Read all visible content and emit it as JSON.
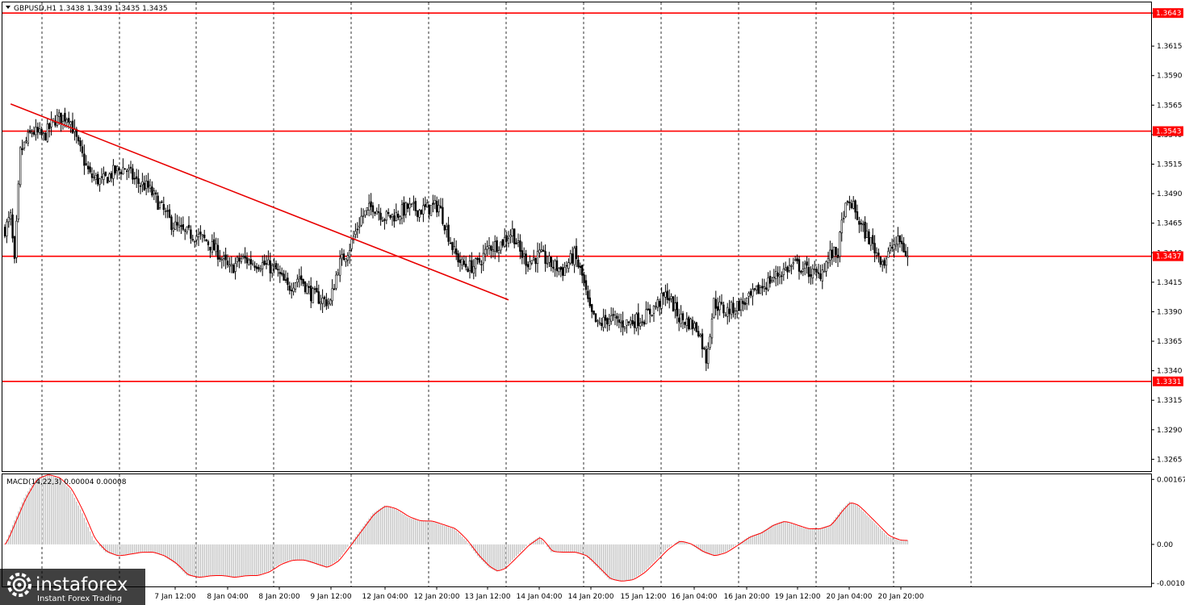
{
  "chart_data": [
    {
      "type": "candlestick",
      "symbol_header": "GBPUSD,H1  1.3438 1.3439 1.3435 1.3435",
      "ylim": [
        1.3255,
        1.3652
      ],
      "y_ticks": [
        "1.3643",
        "1.3615",
        "1.3590",
        "1.3565",
        "1.3540",
        "1.3515",
        "1.3490",
        "1.3465",
        "1.3440",
        "1.3415",
        "1.3390",
        "1.3365",
        "1.3340",
        "1.3315",
        "1.3290",
        "1.3265"
      ],
      "y_tick_values": [
        1.3643,
        1.3615,
        1.359,
        1.3565,
        1.354,
        1.3515,
        1.349,
        1.3465,
        1.344,
        1.3415,
        1.339,
        1.3365,
        1.334,
        1.3315,
        1.329,
        1.3265
      ],
      "x_ticks": [
        "7 Jan 12:00",
        "8 Jan 04:00",
        "8 Jan 20:00",
        "9 Jan 12:00",
        "12 Jan 04:00",
        "12 Jan 20:00",
        "13 Jan 12:00",
        "14 Jan 04:00",
        "14 Jan 20:00",
        "15 Jan 12:00",
        "16 Jan 04:00",
        "16 Jan 20:00",
        "19 Jan 12:00",
        "20 Jan 04:00",
        "20 Jan 20:00"
      ],
      "levels": [
        {
          "label": "1.3643",
          "value": 1.3643
        },
        {
          "label": "1.3543",
          "value": 1.3543
        },
        {
          "label": "1.3437",
          "value": 1.3437
        },
        {
          "label": "1.3331",
          "value": 1.3331
        }
      ],
      "trendline": {
        "from": {
          "bar": 3,
          "price": 1.3566
        },
        "to": {
          "bar": 260,
          "price": 1.34
        }
      },
      "anchors": [
        [
          0,
          1.346
        ],
        [
          3,
          1.347
        ],
        [
          5,
          1.343
        ],
        [
          8,
          1.3525
        ],
        [
          14,
          1.3543
        ],
        [
          20,
          1.3538
        ],
        [
          26,
          1.3553
        ],
        [
          33,
          1.3556
        ],
        [
          38,
          1.353
        ],
        [
          44,
          1.3505
        ],
        [
          50,
          1.35
        ],
        [
          56,
          1.3508
        ],
        [
          62,
          1.3512
        ],
        [
          68,
          1.35
        ],
        [
          74,
          1.3495
        ],
        [
          80,
          1.348
        ],
        [
          86,
          1.3465
        ],
        [
          92,
          1.3457
        ],
        [
          98,
          1.3455
        ],
        [
          104,
          1.345
        ],
        [
          110,
          1.344
        ],
        [
          116,
          1.3425
        ],
        [
          122,
          1.3435
        ],
        [
          128,
          1.3432
        ],
        [
          134,
          1.343
        ],
        [
          140,
          1.3425
        ],
        [
          146,
          1.341
        ],
        [
          152,
          1.342
        ],
        [
          158,
          1.3405
        ],
        [
          164,
          1.34
        ],
        [
          168,
          1.3398
        ],
        [
          172,
          1.3428
        ],
        [
          178,
          1.3445
        ],
        [
          184,
          1.347
        ],
        [
          190,
          1.348
        ],
        [
          196,
          1.347
        ],
        [
          202,
          1.3472
        ],
        [
          208,
          1.3478
        ],
        [
          214,
          1.3476
        ],
        [
          220,
          1.3478
        ],
        [
          224,
          1.348
        ],
        [
          228,
          1.346
        ],
        [
          232,
          1.344
        ],
        [
          236,
          1.343
        ],
        [
          240,
          1.3428
        ],
        [
          244,
          1.343
        ],
        [
          250,
          1.3445
        ],
        [
          256,
          1.3448
        ],
        [
          262,
          1.3458
        ],
        [
          266,
          1.344
        ],
        [
          270,
          1.3432
        ],
        [
          276,
          1.3438
        ],
        [
          282,
          1.343
        ],
        [
          288,
          1.3425
        ],
        [
          294,
          1.3438
        ],
        [
          298,
          1.342
        ],
        [
          302,
          1.339
        ],
        [
          306,
          1.3378
        ],
        [
          312,
          1.3385
        ],
        [
          318,
          1.338
        ],
        [
          324,
          1.3382
        ],
        [
          330,
          1.3385
        ],
        [
          336,
          1.3395
        ],
        [
          342,
          1.3405
        ],
        [
          348,
          1.3385
        ],
        [
          354,
          1.338
        ],
        [
          358,
          1.3375
        ],
        [
          362,
          1.335
        ],
        [
          366,
          1.3398
        ],
        [
          372,
          1.339
        ],
        [
          378,
          1.3395
        ],
        [
          384,
          1.34
        ],
        [
          390,
          1.341
        ],
        [
          396,
          1.3418
        ],
        [
          402,
          1.3425
        ],
        [
          408,
          1.343
        ],
        [
          414,
          1.3425
        ],
        [
          420,
          1.342
        ],
        [
          426,
          1.3438
        ],
        [
          430,
          1.344
        ],
        [
          433,
          1.3475
        ],
        [
          437,
          1.3482
        ],
        [
          442,
          1.3462
        ],
        [
          446,
          1.3452
        ],
        [
          450,
          1.344
        ],
        [
          454,
          1.3432
        ],
        [
          458,
          1.3445
        ],
        [
          462,
          1.345
        ],
        [
          466,
          1.3436
        ]
      ]
    },
    {
      "type": "macd-histogram",
      "indicator_header": "MACD(14,22,3) 0.00004 0.00008",
      "ylim": [
        -0.00108,
        0.0018
      ],
      "y_ticks": [
        "0.00167",
        "0.00",
        "-0.0010"
      ],
      "y_tick_values": [
        0.00167,
        0.0,
        -0.001
      ],
      "anchors": [
        [
          0,
          0.0
        ],
        [
          4,
          0.0005
        ],
        [
          10,
          0.0012
        ],
        [
          16,
          0.0017
        ],
        [
          22,
          0.0018
        ],
        [
          28,
          0.0017
        ],
        [
          34,
          0.0014
        ],
        [
          40,
          0.0008
        ],
        [
          46,
          0.0001
        ],
        [
          52,
          -0.0002
        ],
        [
          58,
          -0.0003
        ],
        [
          64,
          -0.00025
        ],
        [
          70,
          -0.0002
        ],
        [
          76,
          -0.0002
        ],
        [
          82,
          -0.0003
        ],
        [
          88,
          -0.0005
        ],
        [
          94,
          -0.0008
        ],
        [
          100,
          -0.00085
        ],
        [
          106,
          -0.0008
        ],
        [
          112,
          -0.0008
        ],
        [
          118,
          -0.00085
        ],
        [
          124,
          -0.0008
        ],
        [
          130,
          -0.0008
        ],
        [
          136,
          -0.0007
        ],
        [
          142,
          -0.0005
        ],
        [
          148,
          -0.0004
        ],
        [
          154,
          -0.0004
        ],
        [
          160,
          -0.0005
        ],
        [
          166,
          -0.0006
        ],
        [
          172,
          -0.0004
        ],
        [
          178,
          0.0
        ],
        [
          184,
          0.0004
        ],
        [
          190,
          0.0008
        ],
        [
          196,
          0.001
        ],
        [
          202,
          0.0009
        ],
        [
          208,
          0.0007
        ],
        [
          214,
          0.0006
        ],
        [
          220,
          0.0006
        ],
        [
          226,
          0.0005
        ],
        [
          232,
          0.0004
        ],
        [
          238,
          0.0001
        ],
        [
          244,
          -0.0003
        ],
        [
          250,
          -0.0006
        ],
        [
          254,
          -0.0007
        ],
        [
          258,
          -0.0006
        ],
        [
          264,
          -0.0003
        ],
        [
          270,
          0.0
        ],
        [
          276,
          0.0002
        ],
        [
          282,
          -0.0002
        ],
        [
          288,
          -0.0002
        ],
        [
          294,
          -0.0002
        ],
        [
          300,
          -0.0003
        ],
        [
          306,
          -0.0006
        ],
        [
          312,
          -0.0009
        ],
        [
          318,
          -0.00095
        ],
        [
          324,
          -0.0009
        ],
        [
          330,
          -0.0007
        ],
        [
          336,
          -0.0004
        ],
        [
          342,
          -0.0001
        ],
        [
          348,
          0.0001
        ],
        [
          354,
          0.0
        ],
        [
          360,
          -0.0002
        ],
        [
          366,
          -0.0003
        ],
        [
          372,
          -0.0002
        ],
        [
          378,
          0.0
        ],
        [
          384,
          0.0002
        ],
        [
          390,
          0.0003
        ],
        [
          396,
          0.0005
        ],
        [
          402,
          0.0006
        ],
        [
          408,
          0.0005
        ],
        [
          414,
          0.0004
        ],
        [
          420,
          0.0004
        ],
        [
          426,
          0.0005
        ],
        [
          432,
          0.0009
        ],
        [
          436,
          0.0011
        ],
        [
          440,
          0.001
        ],
        [
          444,
          0.0008
        ],
        [
          450,
          0.0005
        ],
        [
          456,
          0.0002
        ],
        [
          462,
          0.0001
        ],
        [
          466,
          0.0001
        ]
      ]
    }
  ],
  "branding": {
    "logo_text": "instaforex",
    "tagline": "Instant Forex Trading"
  },
  "colors": {
    "level": "#ff0000",
    "trendline": "#e80000",
    "macd_bar": "#c0c0c0",
    "macd_signal": "#ff0000",
    "grid": "#000000"
  }
}
